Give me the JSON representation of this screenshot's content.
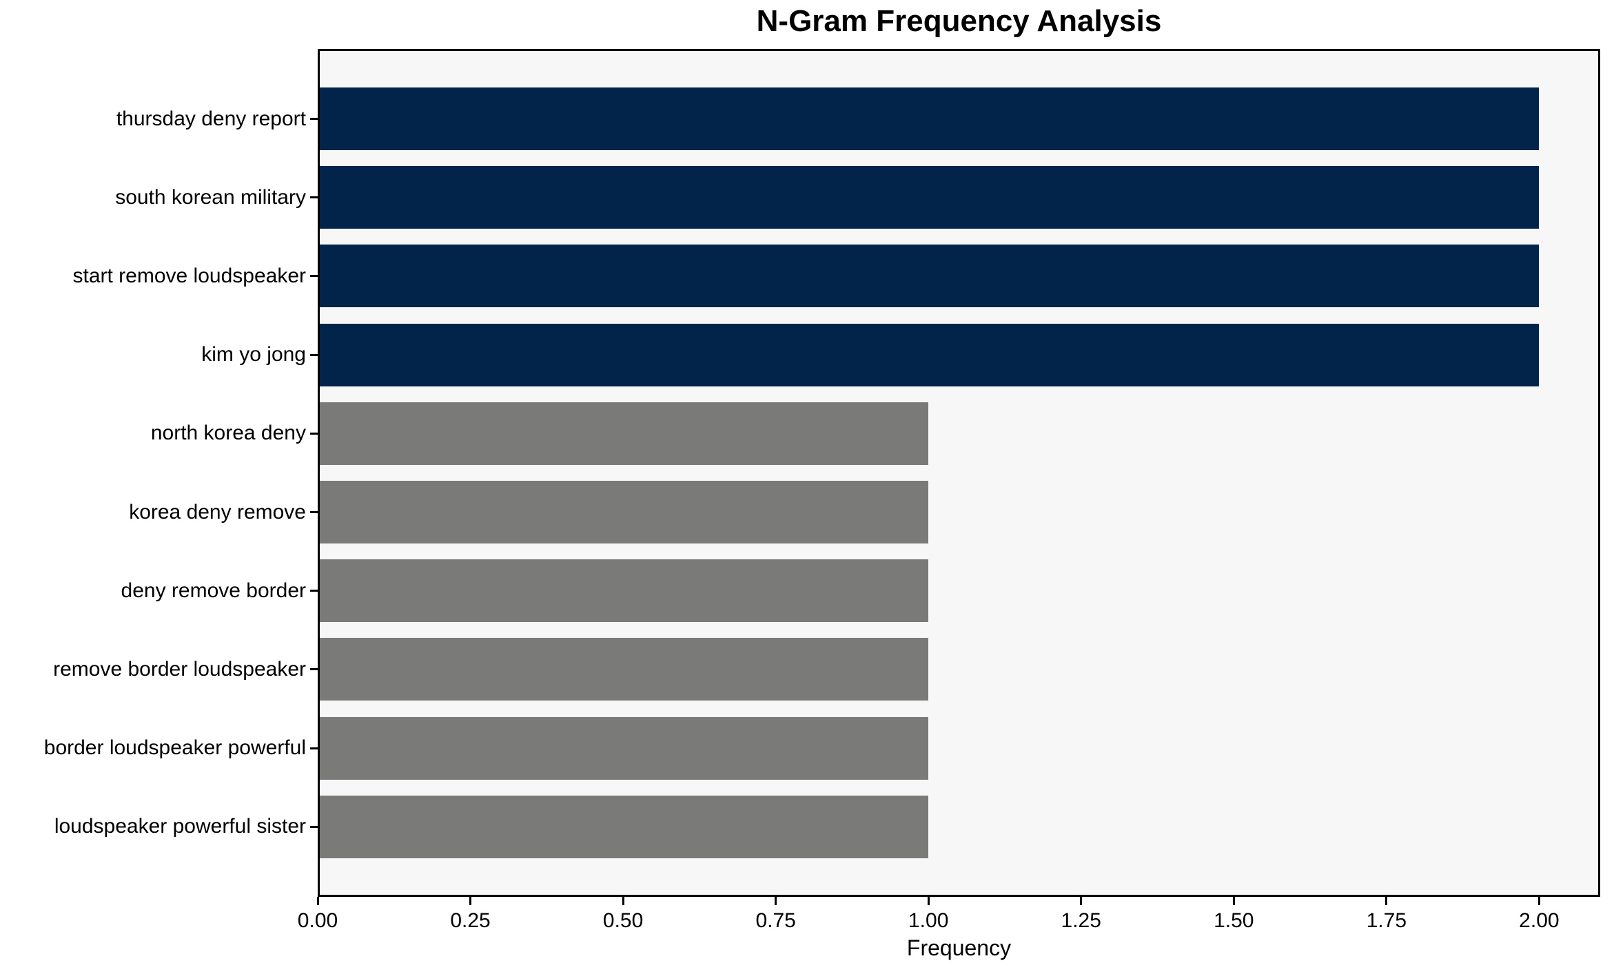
{
  "title": "N-Gram Frequency Analysis",
  "colors": {
    "highlight_bar": "#02234a",
    "default_bar": "#7a7a78",
    "plot_background": "#f7f7f7",
    "frame": "#000000",
    "text": "#000000"
  },
  "chart_data": {
    "type": "bar",
    "orientation": "horizontal",
    "title": "N-Gram Frequency Analysis",
    "xlabel": "Frequency",
    "ylabel": "",
    "categories": [
      "thursday deny report",
      "south korean military",
      "start remove loudspeaker",
      "kim yo jong",
      "north korea deny",
      "korea deny remove",
      "deny remove border",
      "remove border loudspeaker",
      "border loudspeaker powerful",
      "loudspeaker powerful sister"
    ],
    "values": [
      2,
      2,
      2,
      2,
      1,
      1,
      1,
      1,
      1,
      1
    ],
    "bar_colors": [
      "#02234a",
      "#02234a",
      "#02234a",
      "#02234a",
      "#7a7a78",
      "#7a7a78",
      "#7a7a78",
      "#7a7a78",
      "#7a7a78",
      "#7a7a78"
    ],
    "x_ticks": [
      0.0,
      0.25,
      0.5,
      0.75,
      1.0,
      1.25,
      1.5,
      1.75,
      2.0
    ],
    "x_tick_labels": [
      "0.00",
      "0.25",
      "0.50",
      "0.75",
      "1.00",
      "1.25",
      "1.50",
      "1.75",
      "2.00"
    ],
    "xlim": [
      0,
      2.1
    ],
    "grid": false,
    "legend": null
  }
}
